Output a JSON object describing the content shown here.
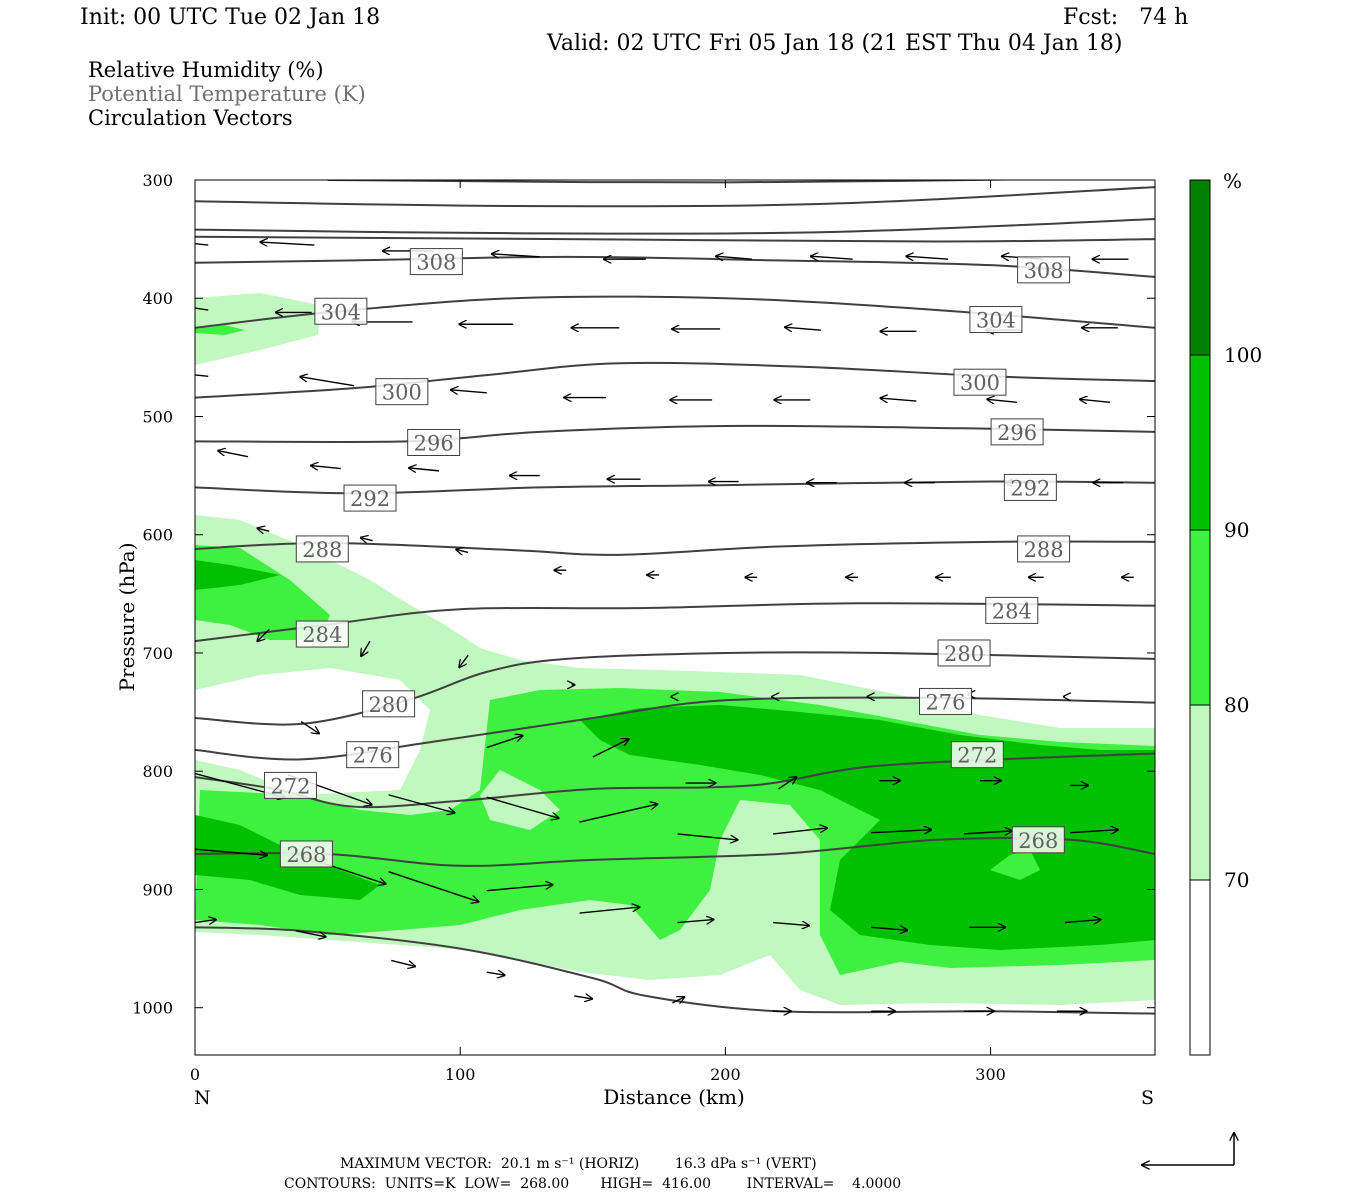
{
  "header": {
    "init": "Init: 00 UTC Tue 02 Jan 18",
    "fcst": "Fcst:   74 h",
    "valid": "Valid: 02 UTC Fri 05 Jan 18 (21 EST Thu 04 Jan 18)"
  },
  "legend_lines": {
    "rh": "Relative Humidity (%)",
    "theta": "Potential Temperature (K)",
    "vectors": "Circulation Vectors"
  },
  "colors": {
    "rh_70_80": "#c0f8c0",
    "rh_80_90": "#40f040",
    "rh_90_100": "#00c000",
    "rh_100_plus": "#008000",
    "theta_line": "#404040",
    "theta_label": "#606060"
  },
  "footer": {
    "max_vector": "MAXIMUM VECTOR:  20.1 m s⁻¹ (HORIZ)        16.3 dPa s⁻¹ (VERT)",
    "contours": "CONTOURS:  UNITS=K  LOW=  268.00       HIGH=  416.00        INTERVAL=    4.0000"
  },
  "chart_data": {
    "type": "cross-section",
    "xlabel": "Distance (km)",
    "ylabel": "Pressure (hPa)",
    "xlim": [
      0,
      362
    ],
    "ylim": [
      1040,
      300
    ],
    "x_ticks": [
      0,
      100,
      200,
      300
    ],
    "y_ticks": [
      300,
      400,
      500,
      600,
      700,
      800,
      900,
      1000
    ],
    "x_end_labels": {
      "left": "N",
      "right": "S"
    },
    "colorbar": {
      "unit": "%",
      "levels": [
        70,
        80,
        90,
        100
      ]
    },
    "theta_contours": [
      {
        "value": 308,
        "points": [
          [
            0,
            370
          ],
          [
            60,
            368
          ],
          [
            140,
            365
          ],
          [
            220,
            368
          ],
          [
            300,
            372
          ],
          [
            362,
            382
          ]
        ],
        "labels": [
          [
            91,
            369
          ],
          [
            320,
            376
          ]
        ]
      },
      {
        "value": 304,
        "points": [
          [
            0,
            425
          ],
          [
            50,
            412
          ],
          [
            120,
            400
          ],
          [
            200,
            400
          ],
          [
            280,
            410
          ],
          [
            362,
            425
          ]
        ],
        "labels": [
          [
            55,
            411
          ],
          [
            302,
            418
          ]
        ]
      },
      {
        "value": 300,
        "points": [
          [
            0,
            484
          ],
          [
            60,
            476
          ],
          [
            110,
            465
          ],
          [
            160,
            455
          ],
          [
            230,
            458
          ],
          [
            300,
            466
          ],
          [
            362,
            470
          ]
        ],
        "labels": [
          [
            78,
            479
          ],
          [
            296,
            471
          ]
        ]
      },
      {
        "value": 296,
        "points": [
          [
            0,
            521
          ],
          [
            80,
            521
          ],
          [
            130,
            513
          ],
          [
            200,
            508
          ],
          [
            290,
            510
          ],
          [
            362,
            513
          ]
        ],
        "labels": [
          [
            90,
            522
          ],
          [
            310,
            513
          ]
        ]
      },
      {
        "value": 292,
        "points": [
          [
            0,
            560
          ],
          [
            60,
            565
          ],
          [
            130,
            560
          ],
          [
            200,
            558
          ],
          [
            300,
            555
          ],
          [
            362,
            556
          ]
        ],
        "labels": [
          [
            66,
            569
          ],
          [
            315,
            560
          ]
        ]
      },
      {
        "value": 288,
        "points": [
          [
            0,
            612
          ],
          [
            50,
            607
          ],
          [
            120,
            613
          ],
          [
            160,
            617
          ],
          [
            220,
            610
          ],
          [
            300,
            606
          ],
          [
            362,
            606
          ]
        ],
        "labels": [
          [
            48,
            612
          ],
          [
            320,
            612
          ]
        ]
      },
      {
        "value": 284,
        "points": [
          [
            0,
            690
          ],
          [
            50,
            676
          ],
          [
            100,
            663
          ],
          [
            170,
            662
          ],
          [
            250,
            658
          ],
          [
            362,
            660
          ]
        ],
        "labels": [
          [
            48,
            684
          ],
          [
            308,
            664
          ]
        ]
      },
      {
        "value": 280,
        "points": [
          [
            0,
            755
          ],
          [
            40,
            760
          ],
          [
            80,
            740
          ],
          [
            110,
            716
          ],
          [
            140,
            705
          ],
          [
            200,
            700
          ],
          [
            260,
            700
          ],
          [
            362,
            705
          ]
        ],
        "labels": [
          [
            73,
            743
          ],
          [
            290,
            700
          ]
        ]
      },
      {
        "value": 276,
        "points": [
          [
            0,
            782
          ],
          [
            40,
            790
          ],
          [
            90,
            775
          ],
          [
            150,
            755
          ],
          [
            200,
            740
          ],
          [
            280,
            738
          ],
          [
            362,
            742
          ]
        ],
        "labels": [
          [
            67,
            786
          ],
          [
            283,
            741
          ]
        ]
      },
      {
        "value": 272,
        "points": [
          [
            0,
            805
          ],
          [
            30,
            815
          ],
          [
            60,
            830
          ],
          [
            100,
            825
          ],
          [
            150,
            815
          ],
          [
            210,
            812
          ],
          [
            260,
            795
          ],
          [
            362,
            785
          ]
        ],
        "labels": [
          [
            36,
            812
          ],
          [
            295,
            786
          ]
        ]
      },
      {
        "value": 268,
        "points": [
          [
            0,
            870
          ],
          [
            50,
            870
          ],
          [
            100,
            880
          ],
          [
            150,
            875
          ],
          [
            220,
            870
          ],
          [
            280,
            858
          ],
          [
            330,
            858
          ],
          [
            362,
            870
          ]
        ],
        "labels": [
          [
            42,
            870
          ],
          [
            318,
            858
          ]
        ]
      },
      {
        "value": "surface",
        "points": [
          [
            0,
            932
          ],
          [
            40,
            935
          ],
          [
            100,
            950
          ],
          [
            150,
            975
          ],
          [
            170,
            990
          ],
          [
            220,
            1003
          ],
          [
            300,
            1003
          ],
          [
            362,
            1005
          ]
        ],
        "labels": []
      }
    ],
    "vectors": [
      {
        "x": 5,
        "p": 355,
        "u": 1,
        "w": 0.1
      },
      {
        "x": 45,
        "p": 355,
        "u": 0.9,
        "w": 0.05
      },
      {
        "x": 90,
        "p": 360,
        "u": 0.85,
        "w": 0
      },
      {
        "x": 130,
        "p": 365,
        "u": 0.8,
        "w": 0.05
      },
      {
        "x": 170,
        "p": 367,
        "u": 0.7,
        "w": 0
      },
      {
        "x": 210,
        "p": 367,
        "u": 0.6,
        "w": 0.05
      },
      {
        "x": 248,
        "p": 367,
        "u": 0.7,
        "w": 0.05
      },
      {
        "x": 284,
        "p": 367,
        "u": 0.7,
        "w": 0.05
      },
      {
        "x": 320,
        "p": 367,
        "u": 0.7,
        "w": 0.05
      },
      {
        "x": 352,
        "p": 367,
        "u": 0.6,
        "w": 0
      },
      {
        "x": 5,
        "p": 410,
        "u": 1,
        "w": 0.15
      },
      {
        "x": 44,
        "p": 412,
        "u": 0.6,
        "w": 0
      },
      {
        "x": 82,
        "p": 420,
        "u": 1,
        "w": 0
      },
      {
        "x": 120,
        "p": 422,
        "u": 0.9,
        "w": 0
      },
      {
        "x": 160,
        "p": 425,
        "u": 0.8,
        "w": 0
      },
      {
        "x": 198,
        "p": 426,
        "u": 0.8,
        "w": 0
      },
      {
        "x": 236,
        "p": 427,
        "u": 0.6,
        "w": 0.05
      },
      {
        "x": 272,
        "p": 428,
        "u": 0.6,
        "w": 0
      },
      {
        "x": 312,
        "p": 427,
        "u": 0.6,
        "w": 0
      },
      {
        "x": 348,
        "p": 425,
        "u": 0.6,
        "w": 0
      },
      {
        "x": 5,
        "p": 466,
        "u": 1,
        "w": 0.1
      },
      {
        "x": 60,
        "p": 474,
        "u": 0.9,
        "w": 0.15
      },
      {
        "x": 110,
        "p": 480,
        "u": 0.6,
        "w": 0.05
      },
      {
        "x": 155,
        "p": 484,
        "u": 0.7,
        "w": 0
      },
      {
        "x": 195,
        "p": 486,
        "u": 0.7,
        "w": 0
      },
      {
        "x": 232,
        "p": 486,
        "u": 0.6,
        "w": 0
      },
      {
        "x": 272,
        "p": 487,
        "u": 0.6,
        "w": 0.05
      },
      {
        "x": 310,
        "p": 488,
        "u": 0.5,
        "w": 0.05
      },
      {
        "x": 345,
        "p": 488,
        "u": 0.5,
        "w": 0.05
      },
      {
        "x": 20,
        "p": 534,
        "u": 0.5,
        "w": 0.1
      },
      {
        "x": 55,
        "p": 544,
        "u": 0.5,
        "w": 0.05
      },
      {
        "x": 92,
        "p": 546,
        "u": 0.5,
        "w": 0.05
      },
      {
        "x": 130,
        "p": 550,
        "u": 0.5,
        "w": 0
      },
      {
        "x": 168,
        "p": 553,
        "u": 0.55,
        "w": 0
      },
      {
        "x": 205,
        "p": 555,
        "u": 0.5,
        "w": 0
      },
      {
        "x": 242,
        "p": 556,
        "u": 0.5,
        "w": 0
      },
      {
        "x": 279,
        "p": 556,
        "u": 0.5,
        "w": 0
      },
      {
        "x": 317,
        "p": 556,
        "u": 0.5,
        "w": 0
      },
      {
        "x": 350,
        "p": 556,
        "u": 0.5,
        "w": 0
      },
      {
        "x": 28,
        "p": 597,
        "u": 0.2,
        "w": 0.05
      },
      {
        "x": 67,
        "p": 605,
        "u": 0.2,
        "w": 0.05
      },
      {
        "x": 103,
        "p": 615,
        "u": 0.2,
        "w": 0.05
      },
      {
        "x": 140,
        "p": 630,
        "u": 0.2,
        "w": 0
      },
      {
        "x": 175,
        "p": 634,
        "u": 0.2,
        "w": 0
      },
      {
        "x": 212,
        "p": 636,
        "u": 0.2,
        "w": 0
      },
      {
        "x": 250,
        "p": 636,
        "u": 0.2,
        "w": 0
      },
      {
        "x": 285,
        "p": 636,
        "u": 0.25,
        "w": 0
      },
      {
        "x": 320,
        "p": 636,
        "u": 0.25,
        "w": 0
      },
      {
        "x": 354,
        "p": 636,
        "u": 0.2,
        "w": 0
      },
      {
        "x": 28,
        "p": 680,
        "u": 0.2,
        "w": -0.2
      },
      {
        "x": 66,
        "p": 690,
        "u": 0.15,
        "w": -0.25
      },
      {
        "x": 103,
        "p": 702,
        "u": 0.15,
        "w": -0.2
      },
      {
        "x": 142,
        "p": 727,
        "u": -0.05,
        "w": 0
      },
      {
        "x": 180,
        "p": 737,
        "u": 0.02,
        "w": 0
      },
      {
        "x": 218,
        "p": 737,
        "u": 0.02,
        "w": 0
      },
      {
        "x": 254,
        "p": 737,
        "u": 0.02,
        "w": 0
      },
      {
        "x": 292,
        "p": 735,
        "u": 0.02,
        "w": 0
      },
      {
        "x": 328,
        "p": 737,
        "u": 0.02,
        "w": 0
      },
      {
        "x": 40,
        "p": 758,
        "u": -0.3,
        "w": -0.2
      },
      {
        "x": 110,
        "p": 780,
        "u": -0.6,
        "w": 0.2
      },
      {
        "x": 150,
        "p": 788,
        "u": -0.6,
        "w": 0.3
      },
      {
        "x": 185,
        "p": 810,
        "u": -0.5,
        "w": 0
      },
      {
        "x": 220,
        "p": 815,
        "u": -0.3,
        "w": 0.2
      },
      {
        "x": 258,
        "p": 808,
        "u": -0.35,
        "w": 0
      },
      {
        "x": 296,
        "p": 808,
        "u": -0.35,
        "w": 0
      },
      {
        "x": 330,
        "p": 812,
        "u": -0.3,
        "w": 0
      },
      {
        "x": 0,
        "p": 802,
        "u": -1.5,
        "w": -0.4
      },
      {
        "x": 35,
        "p": 803,
        "u": -1.4,
        "w": -0.5
      },
      {
        "x": 73,
        "p": 820,
        "u": -1.1,
        "w": -0.3
      },
      {
        "x": 110,
        "p": 822,
        "u": -1.2,
        "w": -0.35
      },
      {
        "x": 145,
        "p": 843,
        "u": -1.3,
        "w": 0.3
      },
      {
        "x": 182,
        "p": 853,
        "u": -1.0,
        "w": -0.1
      },
      {
        "x": 218,
        "p": 853,
        "u": -0.9,
        "w": 0.1
      },
      {
        "x": 255,
        "p": 852,
        "u": -1.0,
        "w": 0.05
      },
      {
        "x": 290,
        "p": 853,
        "u": -0.8,
        "w": 0.05
      },
      {
        "x": 330,
        "p": 852,
        "u": -0.8,
        "w": 0.05
      },
      {
        "x": 0,
        "p": 866,
        "u": -1.2,
        "w": -0.1
      },
      {
        "x": 38,
        "p": 870,
        "u": -1.5,
        "w": -0.5
      },
      {
        "x": 73,
        "p": 885,
        "u": -1.5,
        "w": -0.5
      },
      {
        "x": 110,
        "p": 901,
        "u": -1.1,
        "w": 0.1
      },
      {
        "x": 145,
        "p": 920,
        "u": -1.0,
        "w": 0.1
      },
      {
        "x": 182,
        "p": 928,
        "u": -0.6,
        "w": 0.05
      },
      {
        "x": 218,
        "p": 928,
        "u": -0.6,
        "w": -0.05
      },
      {
        "x": 255,
        "p": 932,
        "u": -0.6,
        "w": -0.05
      },
      {
        "x": 292,
        "p": 932,
        "u": -0.6,
        "w": 0
      },
      {
        "x": 328,
        "p": 928,
        "u": -0.6,
        "w": 0.05
      },
      {
        "x": 0,
        "p": 928,
        "u": -0.35,
        "w": 0.05
      },
      {
        "x": 38,
        "p": 935,
        "u": -0.5,
        "w": -0.1
      },
      {
        "x": 74,
        "p": 960,
        "u": -0.4,
        "w": -0.1
      },
      {
        "x": 110,
        "p": 970,
        "u": -0.3,
        "w": -0.05
      },
      {
        "x": 143,
        "p": 990,
        "u": -0.3,
        "w": -0.05
      },
      {
        "x": 180,
        "p": 996,
        "u": -0.2,
        "w": 0.1
      },
      {
        "x": 218,
        "p": 1003,
        "u": -0.3,
        "w": 0
      },
      {
        "x": 255,
        "p": 1003,
        "u": -0.4,
        "w": 0
      },
      {
        "x": 290,
        "p": 1003,
        "u": -0.5,
        "w": 0
      },
      {
        "x": 325,
        "p": 1003,
        "u": -0.5,
        "w": 0
      }
    ]
  }
}
